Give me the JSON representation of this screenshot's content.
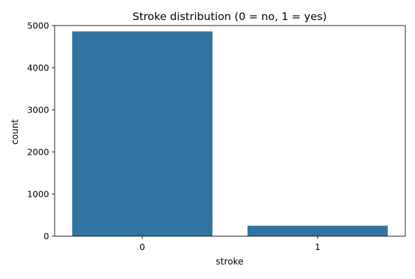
{
  "chart_data": {
    "type": "bar",
    "title": "Stroke distribution (0 = no, 1 = yes)",
    "xlabel": "stroke",
    "ylabel": "count",
    "categories": [
      "0",
      "1"
    ],
    "values": [
      4861,
      249
    ],
    "ylim": [
      0,
      5000
    ],
    "yticks": [
      0,
      1000,
      2000,
      3000,
      4000,
      5000
    ],
    "ytick_labels": [
      "0",
      "1000",
      "2000",
      "3000",
      "4000",
      "5000"
    ],
    "grid": false,
    "legend": "none",
    "bar_color": "#3274a1"
  }
}
